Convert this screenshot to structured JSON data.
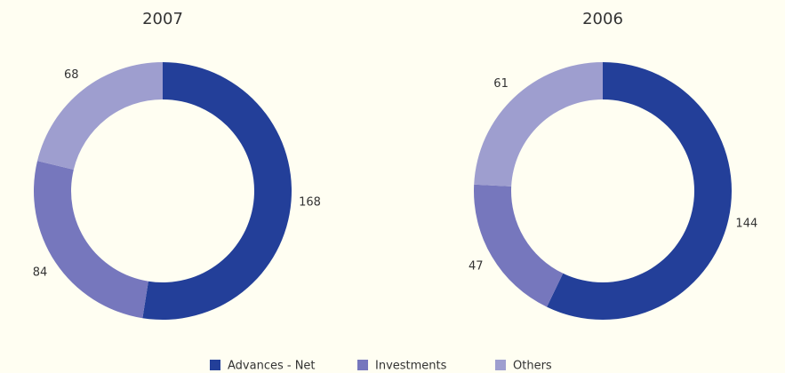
{
  "legend": {
    "labels": [
      "Advances - Net",
      "Investments",
      "Others"
    ],
    "colors": [
      "#233f99",
      "#7677bd",
      "#9e9ecf"
    ]
  },
  "chart_data": [
    {
      "type": "pie",
      "title": "2007",
      "values": [
        168,
        84,
        68
      ]
    },
    {
      "type": "pie",
      "title": "2006",
      "values": [
        144,
        47,
        61
      ]
    }
  ]
}
